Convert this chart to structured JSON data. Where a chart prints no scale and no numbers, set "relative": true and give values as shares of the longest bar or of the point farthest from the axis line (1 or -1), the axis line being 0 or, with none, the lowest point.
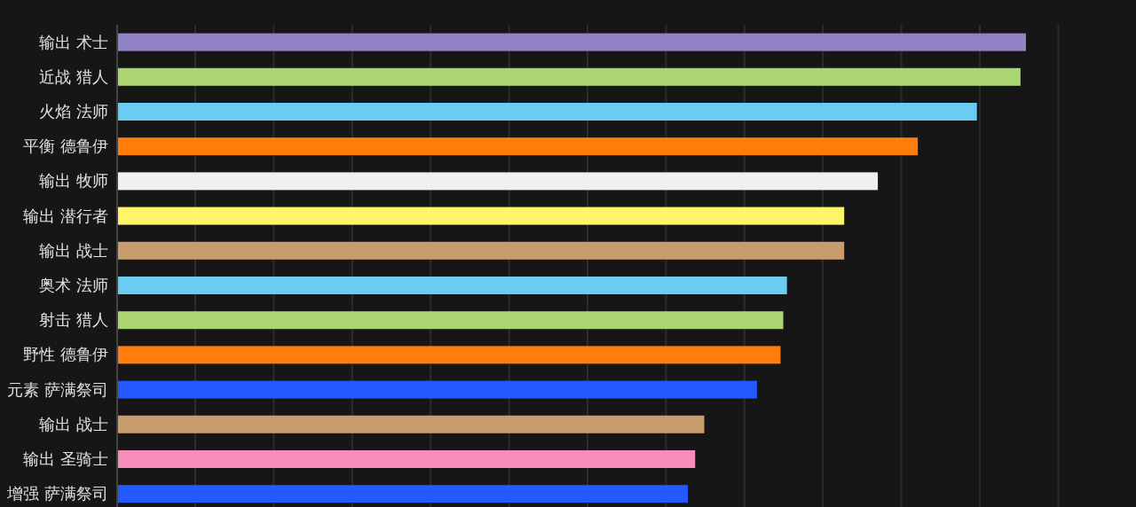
{
  "chart_data": {
    "type": "bar",
    "orientation": "horizontal",
    "relative": true,
    "grid": "x",
    "categories": [
      "输出 术士",
      "近战 猎人",
      "火焰 法师",
      "平衡 德鲁伊",
      "输出 牧师",
      "输出 潜行者",
      "输出 战士",
      "奥术 法师",
      "射击 猎人",
      "野性 德鲁伊",
      "元素 萨满祭司",
      "输出 战士",
      "输出 圣骑士",
      "增强 萨满祭司"
    ],
    "values": [
      1,
      0.994,
      0.946,
      0.881,
      0.837,
      0.8,
      0.8,
      0.737,
      0.733,
      0.73,
      0.704,
      0.646,
      0.636,
      0.628
    ],
    "colors": [
      "#9482c9",
      "#abd473",
      "#69ccf0",
      "#ff7d0a",
      "#f0f0f0",
      "#fff569",
      "#c79c6e",
      "#69ccf0",
      "#abd473",
      "#ff7d0a",
      "#2459ff",
      "#c79c6e",
      "#f58cba",
      "#2459ff"
    ]
  }
}
